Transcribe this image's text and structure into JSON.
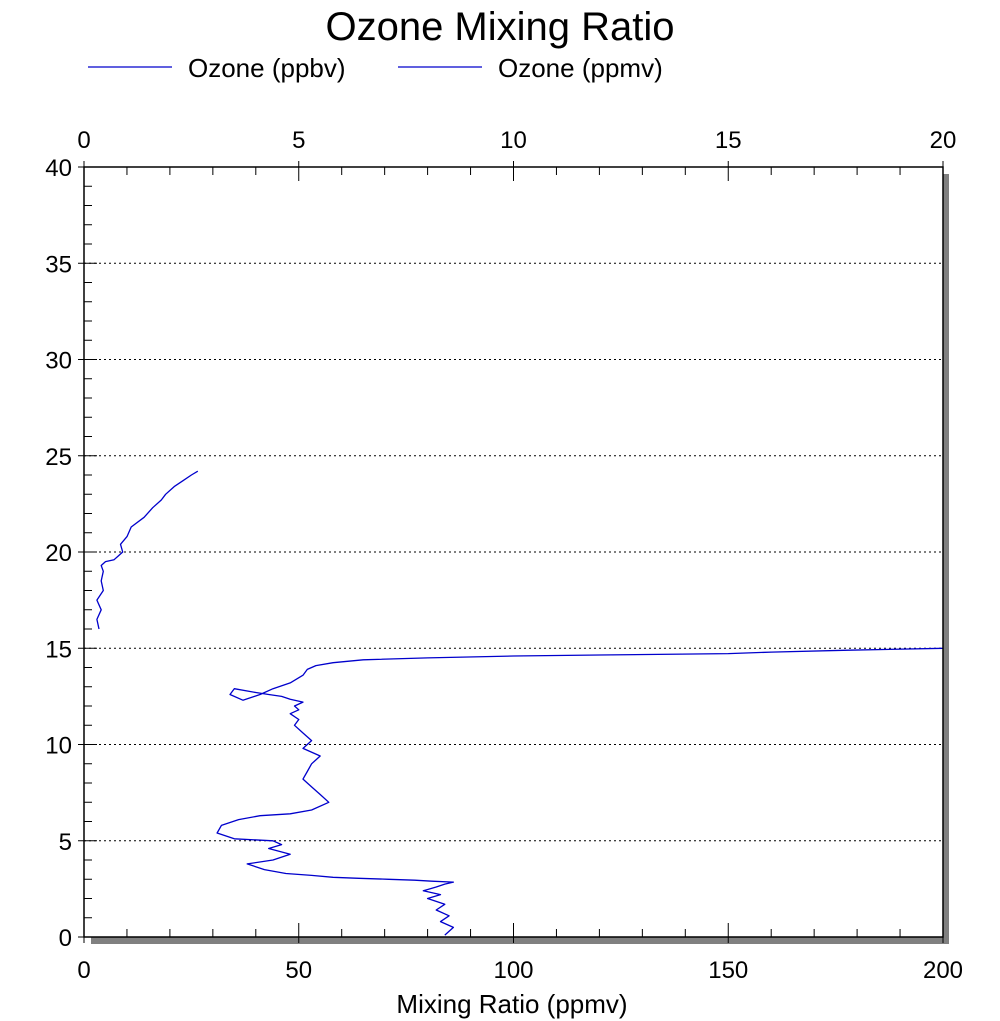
{
  "chart_data": {
    "type": "line",
    "title": "Ozone Mixing Ratio",
    "xlabel": "Mixing Ratio (ppmv)",
    "ylabel": "",
    "xlim": [
      0,
      200
    ],
    "x2lim": [
      0,
      20
    ],
    "ylim": [
      0,
      40
    ],
    "x_ticks": [
      0,
      50,
      100,
      150,
      200
    ],
    "x2_ticks": [
      0,
      5,
      10,
      15,
      20
    ],
    "y_ticks": [
      0,
      5,
      10,
      15,
      20,
      25,
      30,
      35,
      40
    ],
    "grid": "horizontal dotted",
    "legend_placement": "top",
    "series": [
      {
        "name": "Ozone (ppbv)",
        "color": "#0000cc",
        "axis": "bottom",
        "x": [
          84,
          86,
          83,
          85,
          82,
          84,
          80,
          83,
          79,
          82,
          84,
          86,
          81,
          77,
          71,
          64,
          58,
          53,
          47,
          42,
          38,
          44,
          48,
          43,
          46,
          44,
          35,
          31,
          32,
          36,
          41,
          48,
          53,
          57,
          55,
          53,
          51,
          52,
          53,
          55,
          51,
          53,
          51,
          49,
          50,
          48,
          50,
          49,
          51,
          48,
          46,
          43,
          40,
          35,
          34,
          37,
          41,
          44,
          48,
          51,
          52,
          54,
          58,
          65,
          80,
          100,
          120,
          150,
          160,
          178,
          200
        ],
        "y": [
          0.1,
          0.5,
          0.8,
          1.1,
          1.4,
          1.7,
          2.0,
          2.2,
          2.4,
          2.6,
          2.75,
          2.85,
          2.9,
          2.95,
          3.0,
          3.05,
          3.1,
          3.2,
          3.3,
          3.5,
          3.8,
          4.0,
          4.3,
          4.6,
          4.8,
          5.0,
          5.1,
          5.4,
          5.8,
          6.1,
          6.3,
          6.4,
          6.6,
          7.0,
          7.4,
          7.8,
          8.2,
          8.6,
          9.0,
          9.4,
          9.8,
          10.2,
          10.6,
          11.0,
          11.3,
          11.6,
          11.8,
          12.0,
          12.2,
          12.35,
          12.5,
          12.6,
          12.7,
          12.9,
          12.6,
          12.3,
          12.6,
          12.9,
          13.2,
          13.6,
          13.9,
          14.1,
          14.25,
          14.4,
          14.5,
          14.6,
          14.65,
          14.72,
          14.8,
          14.9,
          15.0
        ]
      },
      {
        "name": "Ozone (ppmv)",
        "color": "#0000cc",
        "axis": "top",
        "x": [
          0.35,
          0.3,
          0.4,
          0.3,
          0.45,
          0.4,
          0.45,
          0.4,
          0.5,
          0.7,
          0.8,
          0.9,
          0.85,
          1.0,
          1.1,
          1.4,
          1.6,
          1.8,
          1.9,
          2.1,
          2.3,
          2.5,
          2.65
        ],
        "y": [
          16.0,
          16.5,
          17.0,
          17.5,
          18.0,
          18.5,
          19.0,
          19.3,
          19.5,
          19.6,
          19.8,
          20.0,
          20.4,
          20.8,
          21.3,
          21.8,
          22.3,
          22.7,
          23.0,
          23.4,
          23.7,
          24.0,
          24.2
        ]
      }
    ]
  }
}
